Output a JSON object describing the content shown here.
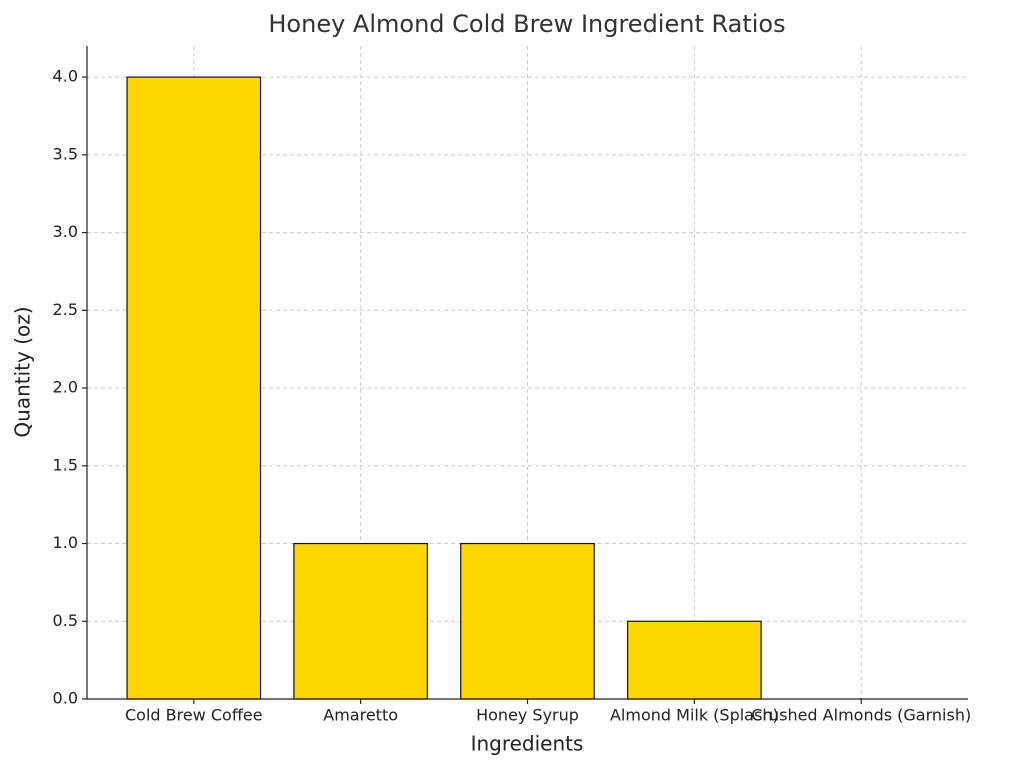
{
  "chart_data": {
    "type": "bar",
    "title": "Honey Almond Cold Brew Ingredient Ratios",
    "x_label": "Ingredients",
    "y_label": "Quantity (oz)",
    "categories": [
      "Cold Brew Coffee",
      "Amaretto",
      "Honey Syrup",
      "Almond Milk (Splash)",
      "Crushed Almonds (Garnish)"
    ],
    "values": [
      4,
      1,
      1,
      0.5,
      0
    ],
    "color": "#ffd700",
    "ylim": [
      0,
      4.2
    ],
    "yticks": [
      {
        "value": 0,
        "label": "0.0"
      },
      0.5,
      {
        "value": 1,
        "label": "1.0"
      },
      1.5,
      {
        "value": 2,
        "label": "2.0"
      },
      2.5,
      {
        "value": 3,
        "label": "3.0"
      },
      3.5,
      {
        "value": 4,
        "label": "4.0"
      }
    ],
    "grid": true
  }
}
